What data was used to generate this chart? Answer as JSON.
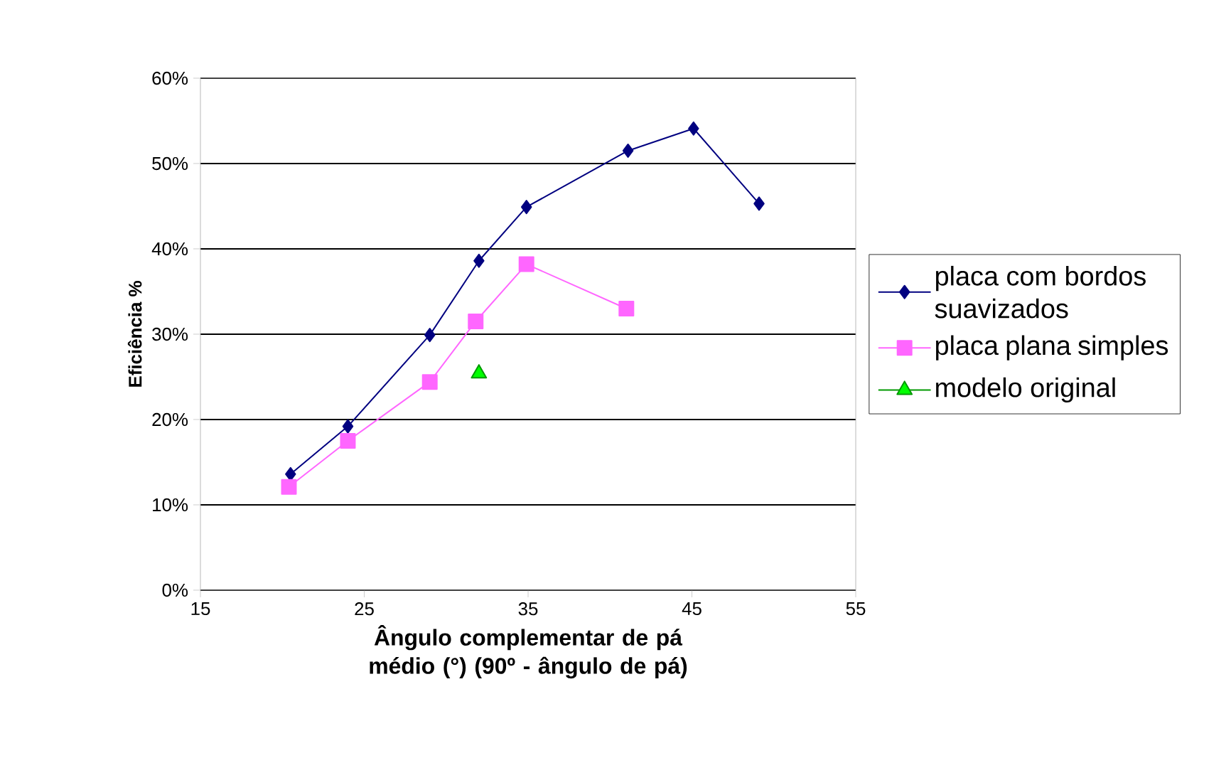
{
  "chart_data": {
    "type": "line",
    "xlabel": "Ângulo complementar de pá médio (°) (90º - ângulo de pá)",
    "ylabel": "Eficiência %",
    "xlim": [
      15,
      55
    ],
    "xticks": [
      15,
      25,
      35,
      45,
      55
    ],
    "ylim": [
      0,
      60
    ],
    "yticks": [
      {
        "value": 0,
        "label": "0%"
      },
      {
        "value": 10,
        "label": "10%"
      },
      {
        "value": 20,
        "label": "20%"
      },
      {
        "value": 30,
        "label": "30%"
      },
      {
        "value": 40,
        "label": "40%"
      },
      {
        "value": 50,
        "label": "50%"
      },
      {
        "value": 60,
        "label": "60%"
      }
    ],
    "grid": "y",
    "legend": "right",
    "series": [
      {
        "name": "placa com bordos suavizados",
        "color": "#000080",
        "marker": "diamond",
        "x": [
          20.5,
          24.0,
          29.0,
          32.0,
          34.9,
          41.1,
          45.1,
          49.1
        ],
        "values": [
          13.6,
          19.2,
          29.9,
          38.6,
          44.9,
          51.5,
          54.1,
          45.3
        ]
      },
      {
        "name": "placa plana simples",
        "color": "#ff66ff",
        "marker": "square",
        "x": [
          20.4,
          24.0,
          29.0,
          31.8,
          34.9,
          41.0
        ],
        "values": [
          12.1,
          17.5,
          24.4,
          31.5,
          38.2,
          33.0
        ]
      },
      {
        "name": "modelo original",
        "color": "#00ff00",
        "marker": "triangle",
        "x": [
          32.0
        ],
        "values": [
          25.4
        ]
      }
    ]
  }
}
